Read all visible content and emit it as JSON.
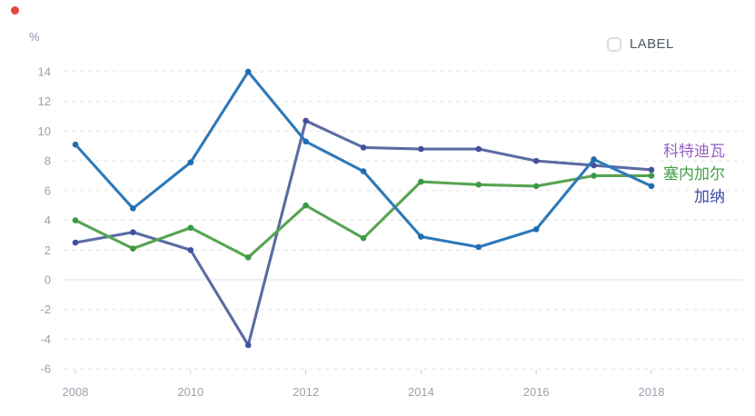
{
  "window": {
    "record_dot_color": "#e8453c"
  },
  "controls": {
    "label_checkbox": {
      "label": "LABEL",
      "checked": false
    }
  },
  "chart_data": {
    "type": "line",
    "title": "",
    "ylabel": "%",
    "x": [
      2008,
      2009,
      2010,
      2011,
      2012,
      2013,
      2014,
      2015,
      2016,
      2017,
      2018
    ],
    "x_axis_labels": [
      "2008",
      "2010",
      "2012",
      "2014",
      "2016",
      "2018"
    ],
    "y_ticks": [
      14,
      12,
      10,
      8,
      6,
      4,
      2,
      0,
      -2,
      -4,
      -6
    ],
    "ylim": [
      -6,
      14
    ],
    "grid": "horizontal-dashed",
    "legend_position": "right-of-line-ends",
    "axis_colors": {
      "tick_label": "#9ba2ad",
      "gridline": "#e2e2e2",
      "zero_line": "#dde3ef",
      "tick_mark": "#c9ccd2"
    },
    "series": [
      {
        "name": "科特迪瓦",
        "color": "#5b6ba3",
        "dot_color": "#424f9c",
        "label_color": "#975fc6",
        "values": [
          2.5,
          3.2,
          2.0,
          -4.4,
          10.7,
          8.9,
          8.8,
          8.8,
          8.0,
          7.7,
          7.4
        ]
      },
      {
        "name": "塞内加尔",
        "color": "#57a452",
        "dot_color": "#3a9b44",
        "label_color": "#42a147",
        "values": [
          4.0,
          2.1,
          3.5,
          1.5,
          5.0,
          2.8,
          6.6,
          6.4,
          6.3,
          7.0,
          7.0
        ]
      },
      {
        "name": "加纳",
        "color": "#2e79b9",
        "dot_color": "#1f6cb1",
        "label_color": "#3b4aa2",
        "values": [
          9.1,
          4.8,
          7.9,
          14.0,
          9.3,
          7.3,
          2.9,
          2.2,
          3.4,
          8.1,
          6.3
        ]
      }
    ]
  }
}
